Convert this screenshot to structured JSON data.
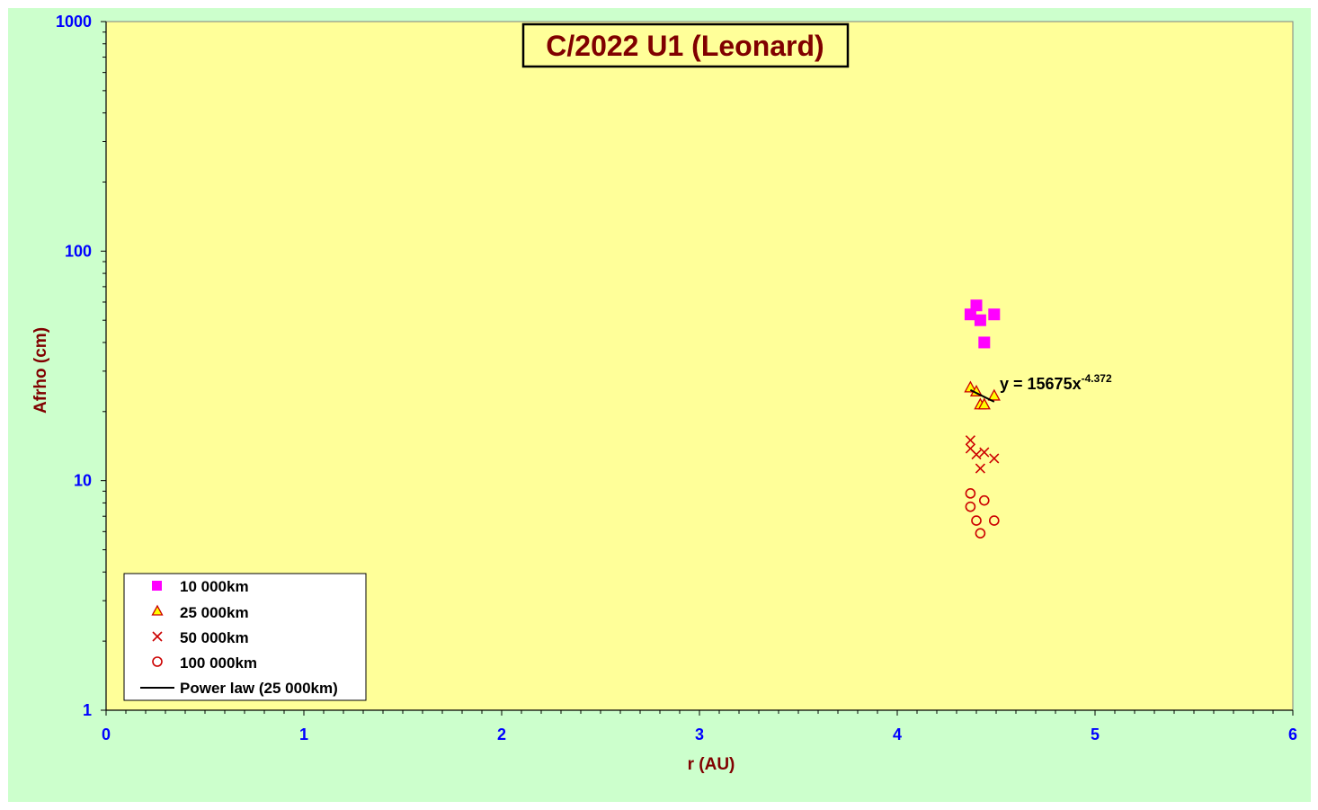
{
  "chart_data": {
    "type": "scatter",
    "title": "C/2022 U1 (Leonard)",
    "xlabel": "r (AU)",
    "ylabel": "Afrho (cm)",
    "xlim": [
      0,
      6
    ],
    "ylim": [
      1,
      1000
    ],
    "yscale": "log",
    "x_ticks": [
      "0",
      "1",
      "2",
      "3",
      "4",
      "5",
      "6"
    ],
    "y_ticks": [
      "1",
      "10",
      "100",
      "1000"
    ],
    "grid": false,
    "legend_position": "bottom-left",
    "series": [
      {
        "name": "10 000km",
        "marker": "square",
        "color": "#ff00ff",
        "x": [
          4.37,
          4.4,
          4.42,
          4.44,
          4.49
        ],
        "y": [
          53,
          58,
          50,
          40,
          53
        ]
      },
      {
        "name": "25 000km",
        "marker": "triangle",
        "color": "#ffff00",
        "stroke": "#cc0000",
        "x": [
          4.37,
          4.4,
          4.42,
          4.44,
          4.49
        ],
        "y": [
          25.5,
          24.5,
          21.5,
          21.5,
          23.5
        ]
      },
      {
        "name": "50 000km",
        "marker": "x",
        "color": "#cc0000",
        "x": [
          4.37,
          4.37,
          4.4,
          4.42,
          4.44,
          4.49
        ],
        "y": [
          15,
          13.8,
          13,
          11.3,
          13.3,
          12.5
        ]
      },
      {
        "name": "100 000km",
        "marker": "circle",
        "color": "#cc0000",
        "x": [
          4.37,
          4.37,
          4.4,
          4.42,
          4.44,
          4.49
        ],
        "y": [
          8.8,
          7.7,
          6.7,
          5.9,
          8.2,
          6.7
        ]
      }
    ],
    "trendline": {
      "name": "Power law (25 000km)",
      "coefficient": 15675,
      "exponent": -4.372,
      "x_range": [
        4.37,
        4.49
      ],
      "label_base": "y = 15675x",
      "label_exponent": "-4.372",
      "color": "#000000"
    },
    "colors": {
      "outer_background": "#ccffcc",
      "plot_background": "#ffff99",
      "tick_labels": "#0000ff",
      "axis_titles": "#800000",
      "title_text": "#800000"
    }
  }
}
